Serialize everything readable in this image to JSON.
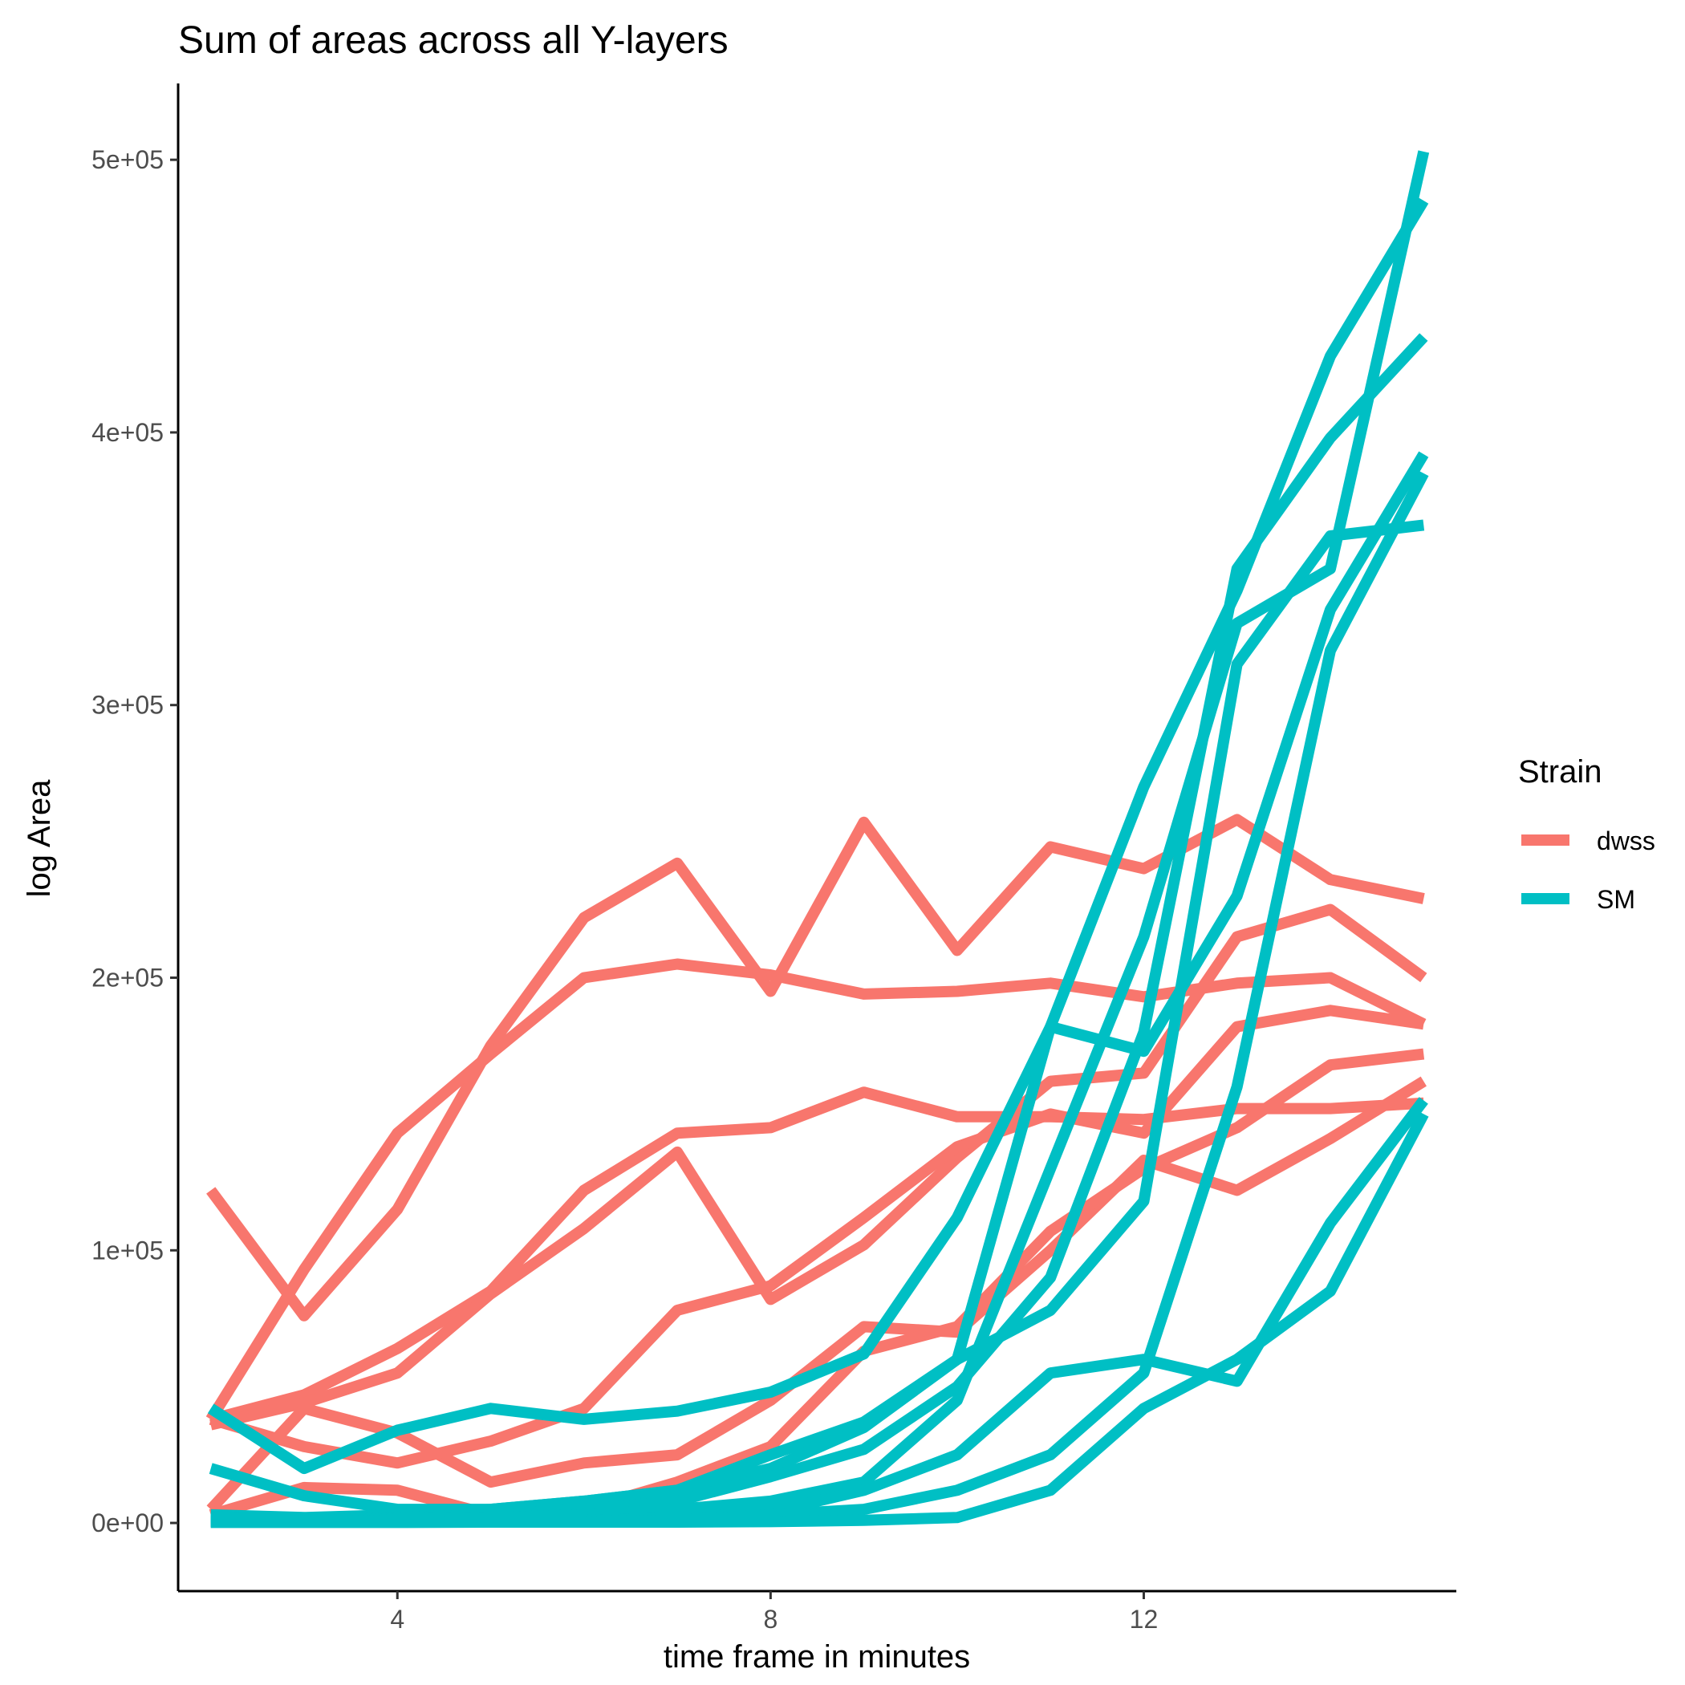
{
  "chart_data": {
    "type": "line",
    "title": "Sum of areas across all Y-layers",
    "xlabel": "time frame in minutes",
    "ylabel": "log Area",
    "xlim": [
      1.65,
      15.35
    ],
    "ylim": [
      -25000,
      528000
    ],
    "x_ticks": [
      4,
      8,
      12
    ],
    "x_tick_labels": [
      "4",
      "8",
      "12"
    ],
    "y_ticks": [
      0,
      100000,
      200000,
      300000,
      400000,
      500000
    ],
    "y_tick_labels": [
      "0e+00",
      "1e+05",
      "2e+05",
      "3e+05",
      "4e+05",
      "5e+05"
    ],
    "grid": false,
    "legend": {
      "title": "Strain",
      "position": "right",
      "entries": [
        {
          "label": "dwss",
          "color": "#F8766D"
        },
        {
          "label": "SM",
          "color": "#00BFC4"
        }
      ]
    },
    "x": [
      2,
      3,
      4,
      5,
      6,
      7,
      8,
      9,
      10,
      11,
      12,
      13,
      14,
      15
    ],
    "series": [
      {
        "group": "dwss",
        "color": "#F8766D",
        "values": [
          122000,
          76000,
          115000,
          175000,
          222000,
          242000,
          195000,
          257000,
          210000,
          248000,
          240000,
          258000,
          236000,
          229000
        ]
      },
      {
        "group": "dwss",
        "color": "#F8766D",
        "values": [
          38000,
          93000,
          143000,
          172000,
          200000,
          205000,
          201000,
          194000,
          195000,
          198000,
          193000,
          198000,
          200000,
          183000
        ]
      },
      {
        "group": "dwss",
        "color": "#F8766D",
        "values": [
          38000,
          47000,
          64000,
          85000,
          122000,
          143000,
          145000,
          158000,
          149000,
          149000,
          148000,
          152000,
          152000,
          154000
        ]
      },
      {
        "group": "dwss",
        "color": "#F8766D",
        "values": [
          36000,
          44000,
          55000,
          84000,
          108000,
          136000,
          82000,
          102000,
          134000,
          162000,
          165000,
          215000,
          225000,
          200000
        ]
      },
      {
        "group": "dwss",
        "color": "#F8766D",
        "values": [
          5000,
          42000,
          33000,
          15000,
          22000,
          25000,
          45000,
          72000,
          70000,
          100000,
          133000,
          122000,
          141000,
          162000
        ]
      },
      {
        "group": "dwss",
        "color": "#F8766D",
        "values": [
          38000,
          28000,
          22000,
          30000,
          42000,
          78000,
          87000,
          112000,
          138000,
          150000,
          143000,
          182000,
          188000,
          183000
        ]
      },
      {
        "group": "dwss",
        "color": "#F8766D",
        "values": [
          3000,
          13000,
          12000,
          3000,
          5000,
          15000,
          28000,
          63000,
          72000,
          107000,
          130000,
          145000,
          168000,
          172000
        ]
      },
      {
        "group": "SM",
        "color": "#00BFC4",
        "values": [
          42000,
          20000,
          34000,
          42000,
          38000,
          41000,
          48000,
          62000,
          112000,
          182000,
          173000,
          230000,
          335000,
          392000
        ]
      },
      {
        "group": "SM",
        "color": "#00BFC4",
        "values": [
          20000,
          10000,
          5000,
          5000,
          8000,
          12000,
          25000,
          37000,
          60000,
          182000,
          270000,
          342000,
          428000,
          485000
        ]
      },
      {
        "group": "SM",
        "color": "#00BFC4",
        "values": [
          3000,
          2000,
          3000,
          5000,
          8000,
          12000,
          20000,
          35000,
          60000,
          78000,
          118000,
          315000,
          362000,
          366000
        ]
      },
      {
        "group": "SM",
        "color": "#00BFC4",
        "values": [
          2000,
          1500,
          2000,
          3000,
          5000,
          8000,
          17000,
          27000,
          50000,
          90000,
          180000,
          350000,
          398000,
          435000
        ]
      },
      {
        "group": "SM",
        "color": "#00BFC4",
        "values": [
          1000,
          1000,
          1500,
          2000,
          3000,
          5000,
          8000,
          15000,
          45000,
          130000,
          215000,
          330000,
          350000,
          503000
        ]
      },
      {
        "group": "SM",
        "color": "#00BFC4",
        "values": [
          500,
          500,
          1000,
          1000,
          1000,
          2000,
          4000,
          12000,
          25000,
          55000,
          60000,
          52000,
          110000,
          155000
        ]
      },
      {
        "group": "SM",
        "color": "#00BFC4",
        "values": [
          500,
          500,
          500,
          500,
          500,
          1000,
          3000,
          5000,
          12000,
          25000,
          55000,
          160000,
          320000,
          385000
        ]
      },
      {
        "group": "SM",
        "color": "#00BFC4",
        "values": [
          200,
          200,
          200,
          300,
          300,
          300,
          500,
          1000,
          2000,
          12000,
          42000,
          60000,
          85000,
          150000
        ]
      }
    ]
  }
}
